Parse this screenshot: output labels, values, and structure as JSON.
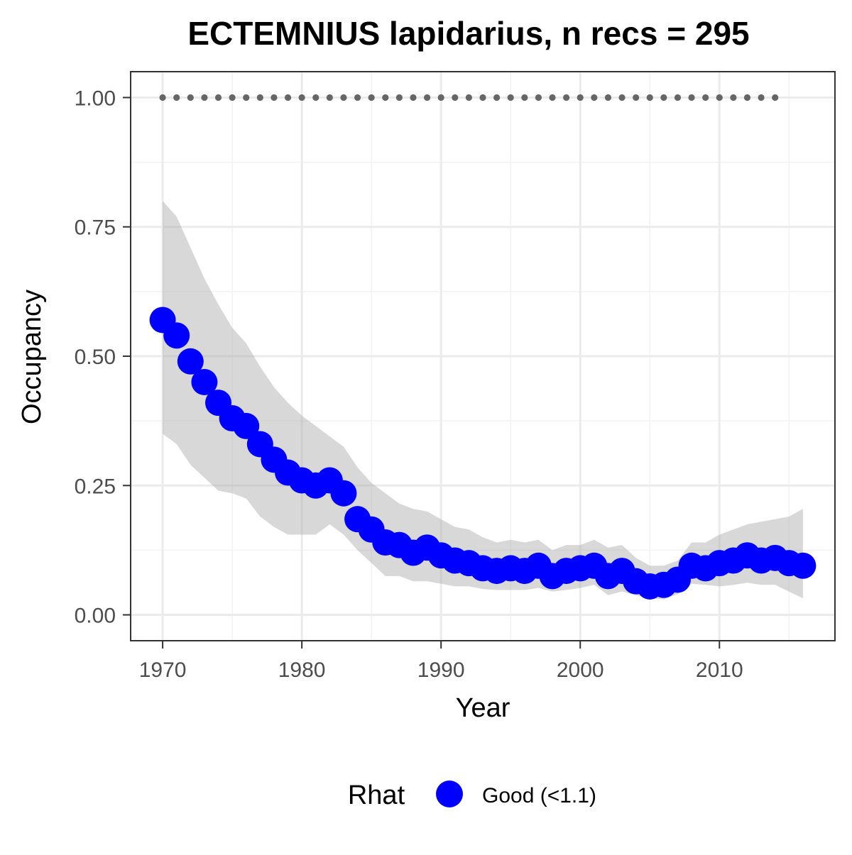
{
  "chart_data": {
    "type": "line",
    "title": "ECTEMNIUS lapidarius, n recs = 295",
    "xlabel": "Year",
    "ylabel": "Occupancy",
    "xlim": [
      1967.7,
      2018.3
    ],
    "ylim": [
      -0.05,
      1.05
    ],
    "x_ticks": [
      1970,
      1980,
      1990,
      2000,
      2010
    ],
    "y_ticks": [
      0.0,
      0.25,
      0.5,
      0.75,
      1.0
    ],
    "x_tick_labels": [
      "1970",
      "1980",
      "1990",
      "2000",
      "2010"
    ],
    "y_tick_labels": [
      "0.00",
      "0.25",
      "0.50",
      "0.75",
      "1.00"
    ],
    "grid": true,
    "legend": {
      "position": "bottom",
      "title": "Rhat",
      "entries": [
        {
          "label": "Good (<1.1)",
          "color": "#0000FF"
        }
      ]
    },
    "series": [
      {
        "name": "Good (<1.1)",
        "color": "#0000FF",
        "x": [
          1970,
          1971,
          1972,
          1973,
          1974,
          1975,
          1976,
          1977,
          1978,
          1979,
          1980,
          1981,
          1982,
          1983,
          1984,
          1985,
          1986,
          1987,
          1988,
          1989,
          1990,
          1991,
          1992,
          1993,
          1994,
          1995,
          1996,
          1997,
          1998,
          1999,
          2000,
          2001,
          2002,
          2003,
          2004,
          2005,
          2006,
          2007,
          2008,
          2009,
          2010,
          2011,
          2012,
          2013,
          2014,
          2015,
          2016
        ],
        "y": [
          0.57,
          0.54,
          0.49,
          0.45,
          0.41,
          0.38,
          0.365,
          0.33,
          0.3,
          0.275,
          0.26,
          0.25,
          0.26,
          0.235,
          0.185,
          0.165,
          0.14,
          0.135,
          0.12,
          0.13,
          0.115,
          0.105,
          0.1,
          0.09,
          0.085,
          0.09,
          0.085,
          0.095,
          0.075,
          0.085,
          0.09,
          0.095,
          0.075,
          0.085,
          0.065,
          0.055,
          0.058,
          0.068,
          0.095,
          0.09,
          0.1,
          0.105,
          0.115,
          0.105,
          0.11,
          0.1,
          0.095
        ]
      }
    ],
    "ribbon": {
      "color": "#A9A9A9",
      "x": [
        1970,
        1971,
        1972,
        1973,
        1974,
        1975,
        1976,
        1977,
        1978,
        1979,
        1980,
        1981,
        1982,
        1983,
        1984,
        1985,
        1986,
        1987,
        1988,
        1989,
        1990,
        1991,
        1992,
        1993,
        1994,
        1995,
        1996,
        1997,
        1998,
        1999,
        2000,
        2001,
        2002,
        2003,
        2004,
        2005,
        2006,
        2007,
        2008,
        2009,
        2010,
        2011,
        2012,
        2013,
        2014,
        2015,
        2016
      ],
      "lower": [
        0.35,
        0.33,
        0.29,
        0.265,
        0.24,
        0.235,
        0.225,
        0.19,
        0.17,
        0.155,
        0.155,
        0.155,
        0.175,
        0.155,
        0.125,
        0.1,
        0.075,
        0.075,
        0.065,
        0.065,
        0.06,
        0.055,
        0.055,
        0.05,
        0.048,
        0.048,
        0.048,
        0.052,
        0.045,
        0.048,
        0.052,
        0.058,
        0.038,
        0.045,
        0.038,
        0.032,
        0.03,
        0.04,
        0.06,
        0.058,
        0.055,
        0.058,
        0.062,
        0.058,
        0.058,
        0.045,
        0.032
      ],
      "upper": [
        0.8,
        0.77,
        0.71,
        0.65,
        0.6,
        0.555,
        0.525,
        0.48,
        0.44,
        0.41,
        0.385,
        0.365,
        0.345,
        0.325,
        0.285,
        0.255,
        0.235,
        0.215,
        0.205,
        0.2,
        0.185,
        0.17,
        0.165,
        0.15,
        0.14,
        0.145,
        0.14,
        0.145,
        0.125,
        0.135,
        0.135,
        0.145,
        0.13,
        0.135,
        0.11,
        0.095,
        0.095,
        0.105,
        0.14,
        0.14,
        0.155,
        0.165,
        0.175,
        0.18,
        0.185,
        0.19,
        0.205
      ]
    },
    "reference_points": {
      "color": "#666666",
      "x": [
        1970,
        1971,
        1972,
        1973,
        1974,
        1975,
        1976,
        1977,
        1978,
        1979,
        1980,
        1981,
        1982,
        1983,
        1984,
        1985,
        1986,
        1987,
        1988,
        1989,
        1990,
        1991,
        1992,
        1993,
        1994,
        1995,
        1996,
        1997,
        1998,
        1999,
        2000,
        2001,
        2002,
        2003,
        2004,
        2005,
        2006,
        2007,
        2008,
        2009,
        2010,
        2011,
        2012,
        2013,
        2014
      ],
      "y": 1.0
    }
  }
}
